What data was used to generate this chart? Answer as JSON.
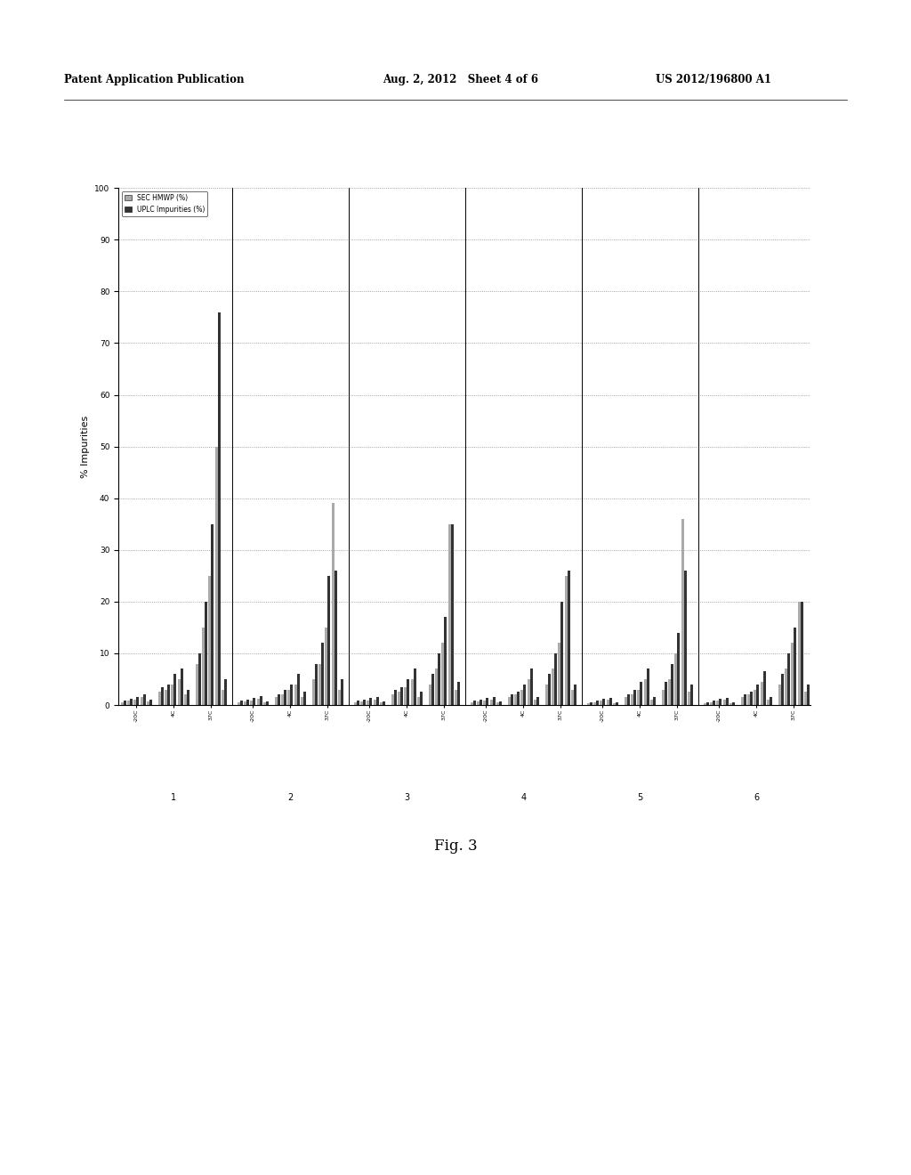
{
  "title": "",
  "ylabel": "% Impurities",
  "xlabel": "",
  "legend_labels": [
    "SEC HMWP (%)",
    "UPLC Impurities (%)"
  ],
  "ylim": [
    0,
    100
  ],
  "yticks": [
    0,
    10,
    20,
    30,
    40,
    50,
    60,
    70,
    80,
    90,
    100
  ],
  "background_color": "#ffffff",
  "grid_color": "#aaaaaa",
  "bar_color_sec": "#aaaaaa",
  "bar_color_uplc": "#333333",
  "header_text_left": "Patent Application Publication",
  "header_text_mid": "Aug. 2, 2012   Sheet 4 of 6",
  "header_text_right": "US 2012/196800 A1",
  "figure_label": "Fig. 3",
  "flat_bars": {
    "sec": [
      0.5,
      0.8,
      1.0,
      1.5,
      0.7,
      2.5,
      3.0,
      4.0,
      5.0,
      2.0,
      8.0,
      15.0,
      25.0,
      50.0,
      3.0,
      0.5,
      0.7,
      0.9,
      1.2,
      0.5,
      1.5,
      2.0,
      3.0,
      4.0,
      1.5,
      5.0,
      8.0,
      15.0,
      39.0,
      3.0,
      0.5,
      0.7,
      0.9,
      1.0,
      0.5,
      2.0,
      2.5,
      3.5,
      5.0,
      1.5,
      4.0,
      7.0,
      12.0,
      35.0,
      3.0,
      0.5,
      0.7,
      0.9,
      1.0,
      0.5,
      1.5,
      2.0,
      3.0,
      5.0,
      1.0,
      4.0,
      7.0,
      12.0,
      25.0,
      3.0,
      0.4,
      0.6,
      0.8,
      1.0,
      0.4,
      1.5,
      2.0,
      3.0,
      5.0,
      1.0,
      3.0,
      5.0,
      10.0,
      36.0,
      2.5,
      0.4,
      0.6,
      0.8,
      1.0,
      0.4,
      1.5,
      2.0,
      3.0,
      4.5,
      1.0,
      4.0,
      7.0,
      12.0,
      20.0,
      2.5
    ],
    "uplc": [
      0.8,
      1.2,
      1.5,
      2.0,
      1.0,
      3.5,
      4.0,
      6.0,
      7.0,
      3.0,
      10.0,
      20.0,
      35.0,
      76.0,
      5.0,
      0.8,
      1.0,
      1.3,
      1.8,
      0.7,
      2.0,
      3.0,
      4.0,
      6.0,
      2.5,
      8.0,
      12.0,
      25.0,
      26.0,
      5.0,
      0.8,
      1.0,
      1.3,
      1.5,
      0.7,
      3.0,
      3.5,
      5.0,
      7.0,
      2.5,
      6.0,
      10.0,
      17.0,
      35.0,
      4.5,
      0.8,
      1.0,
      1.3,
      1.5,
      0.7,
      2.0,
      2.5,
      4.0,
      7.0,
      1.5,
      6.0,
      10.0,
      20.0,
      26.0,
      4.0,
      0.6,
      0.9,
      1.2,
      1.4,
      0.6,
      2.0,
      3.0,
      4.5,
      7.0,
      1.5,
      4.5,
      8.0,
      14.0,
      26.0,
      4.0,
      0.6,
      0.9,
      1.2,
      1.4,
      0.6,
      2.0,
      2.5,
      4.0,
      6.5,
      1.5,
      6.0,
      10.0,
      15.0,
      20.0,
      4.0
    ]
  }
}
